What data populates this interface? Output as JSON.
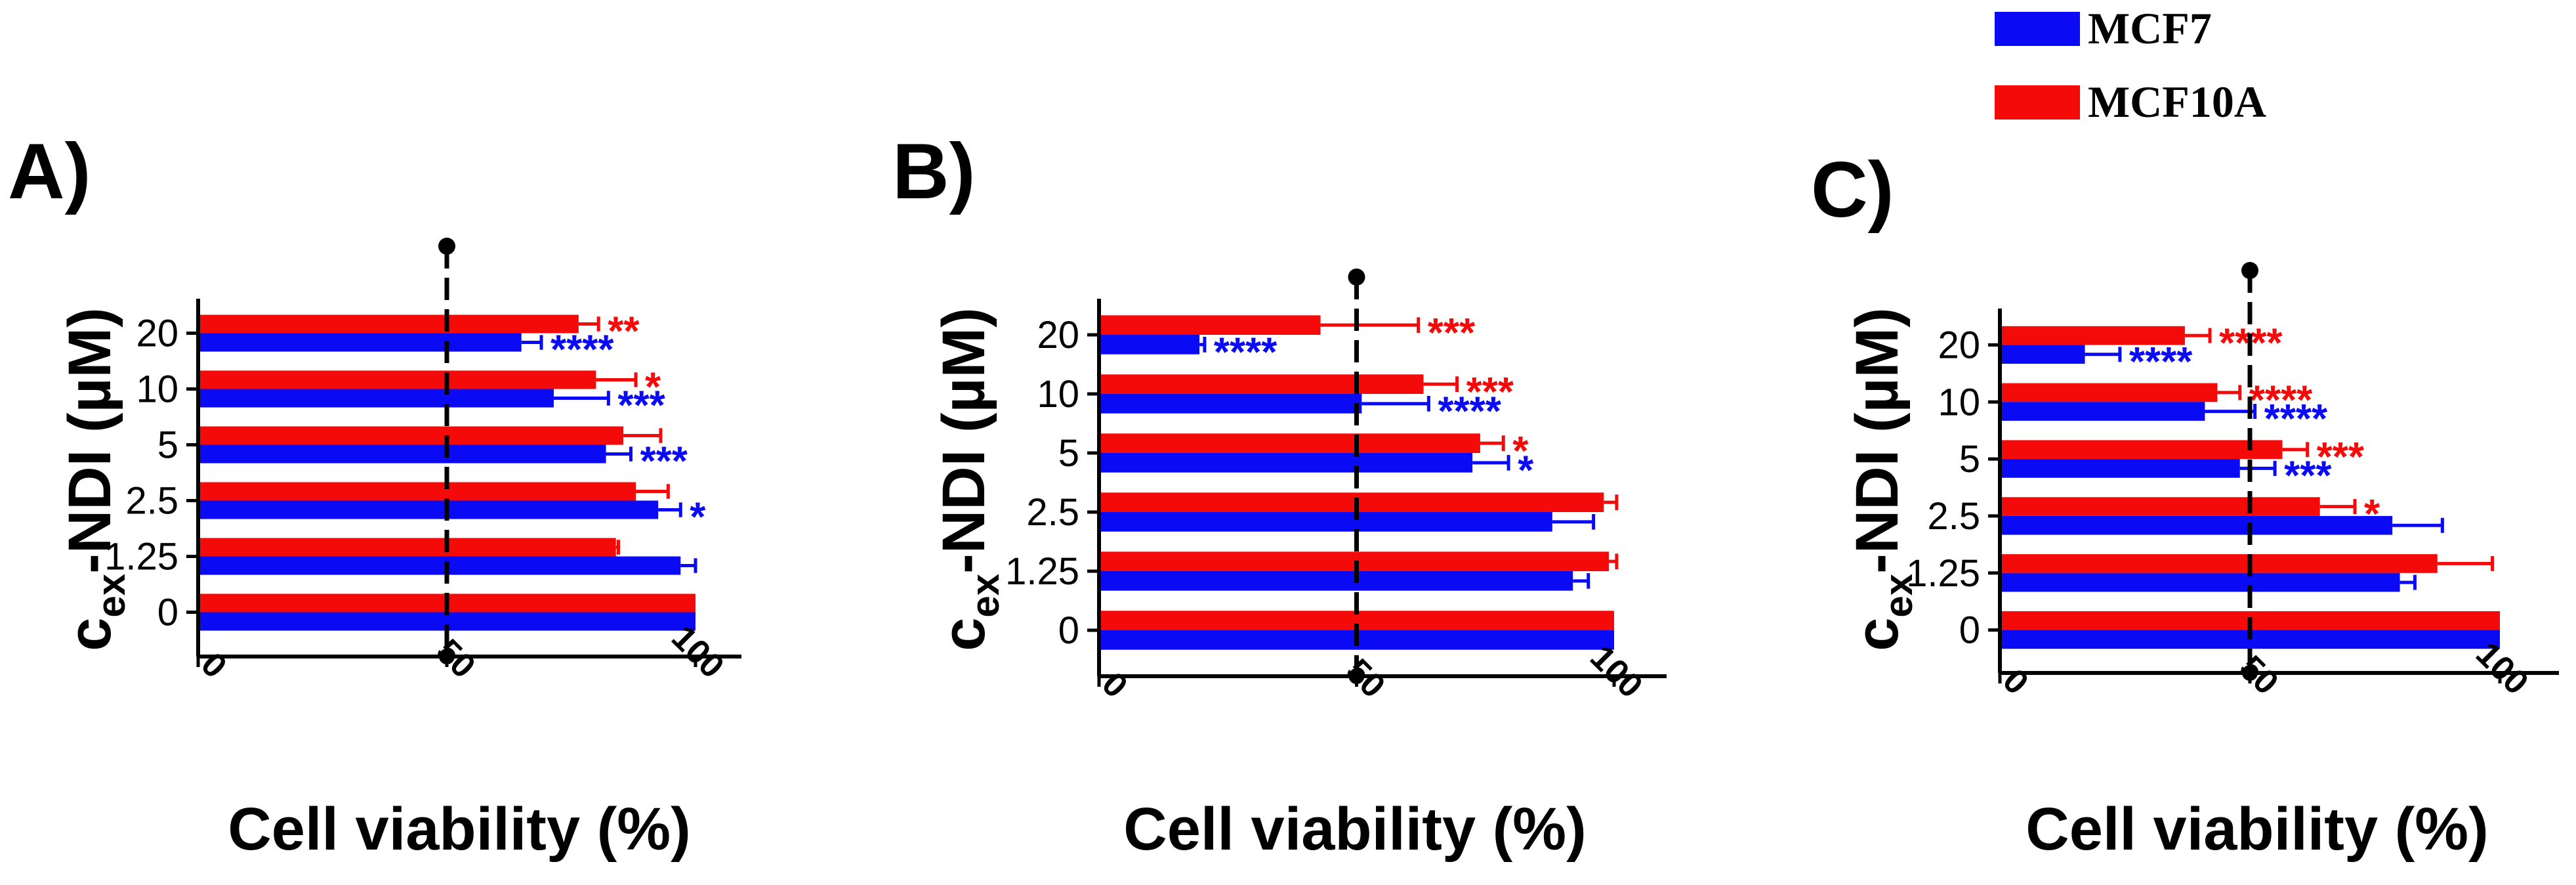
{
  "legend": {
    "entries": [
      {
        "label": "MCF7",
        "color": "#0a0af5"
      },
      {
        "label": "MCF10A",
        "color": "#f50a0a"
      }
    ]
  },
  "chart_data": [
    {
      "panel": "A)",
      "type": "bar",
      "orientation": "horizontal",
      "categories": [
        "0",
        "1.25",
        "2.5",
        "5",
        "10",
        "20"
      ],
      "xlabel": "Cell viability (%)",
      "ylabel_main": "c",
      "ylabel_sub": "ex",
      "ylabel_rest": "-NDI (µM)",
      "xlim": [
        0,
        110
      ],
      "xticks": [
        "0",
        "50",
        "100"
      ],
      "reference_line": 50,
      "series": [
        {
          "name": "MCF7",
          "color": "#0a0af5",
          "values": [
            100,
            97,
            92.5,
            82,
            71.5,
            65
          ],
          "errors": [
            0,
            3,
            4.5,
            5,
            11,
            4
          ],
          "stars": [
            "",
            "",
            "*",
            "***",
            "***",
            "****"
          ]
        },
        {
          "name": "MCF10A",
          "color": "#f50a0a",
          "values": [
            100,
            84,
            88,
            85.5,
            80,
            76.5
          ],
          "errors": [
            0,
            0.5,
            6.5,
            7.5,
            8,
            4
          ],
          "stars": [
            "",
            "",
            "",
            "",
            "*",
            "**"
          ]
        }
      ]
    },
    {
      "panel": "B)",
      "type": "bar",
      "orientation": "horizontal",
      "categories": [
        "0",
        "1.25",
        "2.5",
        "5",
        "10",
        "20"
      ],
      "xlabel": "Cell viability (%)",
      "ylabel_main": "c",
      "ylabel_sub": "ex",
      "ylabel_rest": "-NDI (µM)",
      "xlim": [
        0,
        110
      ],
      "xticks": [
        "0",
        "50",
        "100"
      ],
      "reference_line": 50,
      "series": [
        {
          "name": "MCF7",
          "color": "#0a0af5",
          "values": [
            100,
            92,
            88,
            72.5,
            51,
            19.5
          ],
          "errors": [
            0,
            3,
            8,
            7,
            13,
            1
          ],
          "stars": [
            "",
            "",
            "",
            "*",
            "****",
            "****"
          ]
        },
        {
          "name": "MCF10A",
          "color": "#f50a0a",
          "values": [
            100,
            99,
            98,
            74,
            63,
            43
          ],
          "errors": [
            0,
            1.5,
            2.5,
            4.5,
            6.5,
            19
          ],
          "stars": [
            "",
            "",
            "",
            "*",
            "***",
            "***"
          ]
        }
      ]
    },
    {
      "panel": "C)",
      "type": "bar",
      "orientation": "horizontal",
      "categories": [
        "0",
        "1.25",
        "2.5",
        "5",
        "10",
        "20"
      ],
      "xlabel": "Cell viability (%)",
      "ylabel_main": "c",
      "ylabel_sub": "ex",
      "ylabel_rest": "-NDI (µM)",
      "xlim": [
        0,
        110
      ],
      "xticks": [
        "0",
        "50",
        "100"
      ],
      "reference_line": 50,
      "series": [
        {
          "name": "MCF7",
          "color": "#0a0af5",
          "values": [
            100,
            80,
            78.5,
            48,
            41,
            17
          ],
          "errors": [
            0,
            3,
            10,
            7,
            10,
            7
          ],
          "stars": [
            "",
            "",
            "",
            "***",
            "****",
            "****"
          ]
        },
        {
          "name": "MCF10A",
          "color": "#f50a0a",
          "values": [
            100,
            87.5,
            64,
            56.5,
            43.5,
            37
          ],
          "errors": [
            0,
            11,
            7,
            5,
            4.5,
            5
          ],
          "stars": [
            "",
            "",
            "*",
            "***",
            "****",
            "****"
          ]
        }
      ]
    }
  ]
}
